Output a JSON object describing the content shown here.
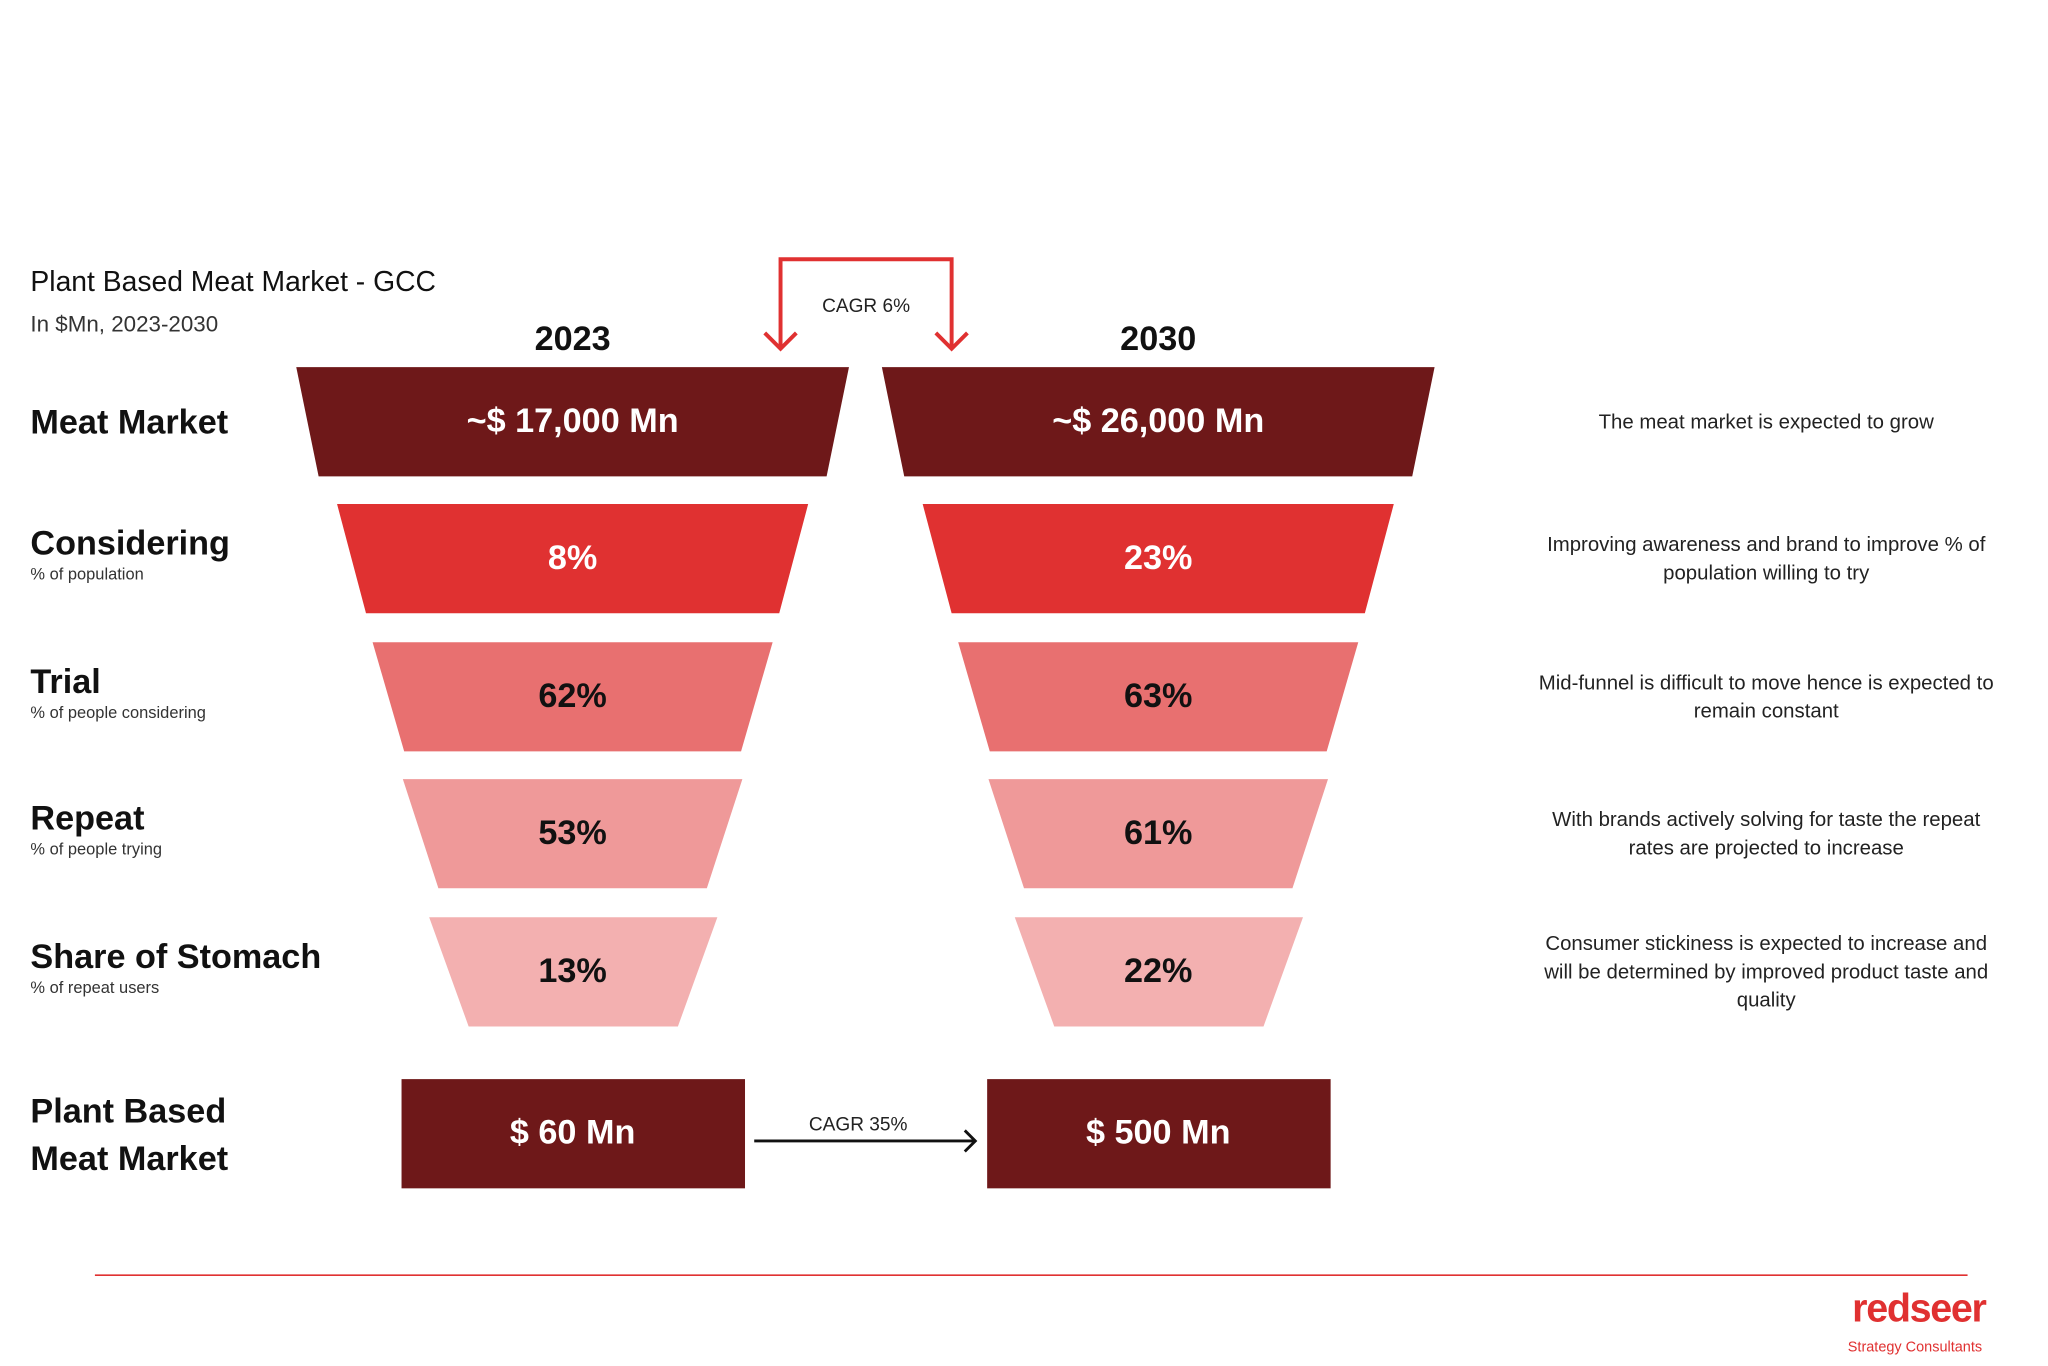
{
  "title": "Plant Based Meat Market - GCC",
  "subtitle": "In $Mn, 2023-2030",
  "years": [
    "2023",
    "2030"
  ],
  "cagr_top": "CAGR 6%",
  "cagr_bottom": "CAGR 35%",
  "colors": {
    "dark": "#6e1819",
    "red": "#e03131",
    "mid": "#e87070",
    "light": "#ef9999",
    "lighter": "#f3b0b0",
    "accent": "#e03131"
  },
  "rows": [
    {
      "label": "Meat Market",
      "sublabel": "",
      "v2023": "~$ 17,000 Mn",
      "v2030": "~$ 26,000 Mn",
      "note": [
        "The meat market is expected to grow"
      ]
    },
    {
      "label": "Considering",
      "sublabel": "% of population",
      "v2023": "8%",
      "v2030": "23%",
      "note": [
        "Improving awareness and brand to improve % of",
        "population willing to try"
      ]
    },
    {
      "label": "Trial",
      "sublabel": "% of people considering",
      "v2023": "62%",
      "v2030": "63%",
      "note": [
        "Mid-funnel is difficult to move hence is expected to",
        "remain constant"
      ]
    },
    {
      "label": "Repeat",
      "sublabel": "% of people trying",
      "v2023": "53%",
      "v2030": "61%",
      "note": [
        "With brands actively solving for taste the repeat",
        "rates are projected to increase"
      ]
    },
    {
      "label": "Share of Stomach",
      "sublabel": "% of repeat users",
      "v2023": "13%",
      "v2030": "22%",
      "note": [
        "Consumer stickiness is expected to increase and",
        "will be determined by improved product taste and",
        "quality"
      ]
    }
  ],
  "plant": {
    "label": [
      "Plant Based",
      "Meat Market"
    ],
    "v2023": "$ 60 Mn",
    "v2030": "$ 500 Mn"
  },
  "logo": {
    "name": "redseer",
    "tagline": "Strategy Consultants"
  }
}
